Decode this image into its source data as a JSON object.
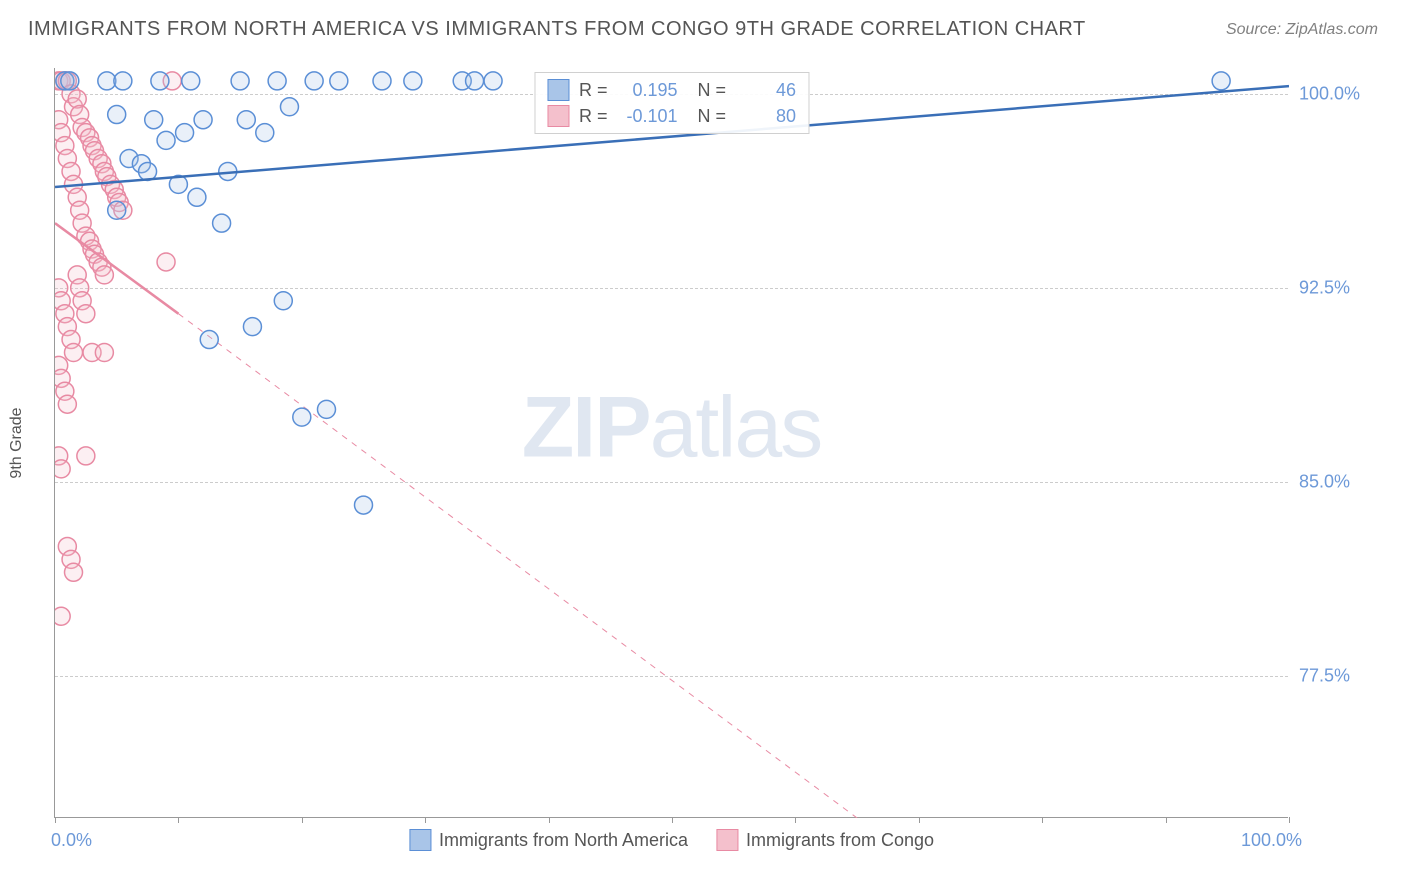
{
  "header": {
    "title": "IMMIGRANTS FROM NORTH AMERICA VS IMMIGRANTS FROM CONGO 9TH GRADE CORRELATION CHART",
    "source": "Source: ZipAtlas.com"
  },
  "chart": {
    "type": "scatter",
    "y_axis_title": "9th Grade",
    "xlim": [
      0,
      100
    ],
    "ylim": [
      72,
      101
    ],
    "x_ticks": [
      0,
      10,
      20,
      30,
      40,
      50,
      60,
      70,
      80,
      90,
      100
    ],
    "x_tick_labels": {
      "left": "0.0%",
      "right": "100.0%"
    },
    "y_gridlines": [
      77.5,
      85.0,
      92.5,
      100.0
    ],
    "y_tick_labels": [
      "77.5%",
      "85.0%",
      "92.5%",
      "100.0%"
    ],
    "grid_color": "#cccccc",
    "axis_color": "#999999",
    "background_color": "#ffffff",
    "label_color": "#6d99d8",
    "marker_radius": 9,
    "marker_stroke_width": 1.5,
    "marker_fill_opacity": 0.25,
    "series": [
      {
        "name": "Immigrants from North America",
        "color_fill": "#a9c5e8",
        "color_stroke": "#5b8fd6",
        "R": "0.195",
        "N": "46",
        "trend": {
          "x1": 0,
          "y1": 96.4,
          "x2": 100,
          "y2": 100.3,
          "width": 2.5,
          "dash": "none"
        },
        "points": [
          [
            0.8,
            100.5
          ],
          [
            1.2,
            100.5
          ],
          [
            4.2,
            100.5
          ],
          [
            5.0,
            95.5
          ],
          [
            5.0,
            99.2
          ],
          [
            5.5,
            100.5
          ],
          [
            6.0,
            97.5
          ],
          [
            7.0,
            97.3
          ],
          [
            7.5,
            97.0
          ],
          [
            8.0,
            99.0
          ],
          [
            8.5,
            100.5
          ],
          [
            9.0,
            98.2
          ],
          [
            10.0,
            96.5
          ],
          [
            10.5,
            98.5
          ],
          [
            11.0,
            100.5
          ],
          [
            11.5,
            96.0
          ],
          [
            12.0,
            99.0
          ],
          [
            12.5,
            90.5
          ],
          [
            13.5,
            95.0
          ],
          [
            14.0,
            97.0
          ],
          [
            15.0,
            100.5
          ],
          [
            15.5,
            99.0
          ],
          [
            16.0,
            91.0
          ],
          [
            17.0,
            98.5
          ],
          [
            18.0,
            100.5
          ],
          [
            18.5,
            92.0
          ],
          [
            19.0,
            99.5
          ],
          [
            20.0,
            87.5
          ],
          [
            21.0,
            100.5
          ],
          [
            22.0,
            87.8
          ],
          [
            23.0,
            100.5
          ],
          [
            25.0,
            84.1
          ],
          [
            26.5,
            100.5
          ],
          [
            29.0,
            100.5
          ],
          [
            33.0,
            100.5
          ],
          [
            34.0,
            100.5
          ],
          [
            35.5,
            100.5
          ],
          [
            94.5,
            100.5
          ]
        ]
      },
      {
        "name": "Immigrants from Congo",
        "color_fill": "#f4c0cc",
        "color_stroke": "#e88aa3",
        "R": "-0.101",
        "N": "80",
        "trend_solid": {
          "x1": 0,
          "y1": 95.0,
          "x2": 10,
          "y2": 91.5,
          "width": 2.5
        },
        "trend_dashed": {
          "x1": 10,
          "y1": 91.5,
          "x2": 65,
          "y2": 72.0,
          "width": 1,
          "dash": "6,6"
        },
        "points": [
          [
            0.3,
            100.5
          ],
          [
            0.5,
            100.5
          ],
          [
            0.8,
            100.5
          ],
          [
            1.0,
            100.5
          ],
          [
            1.3,
            100.0
          ],
          [
            1.5,
            99.5
          ],
          [
            1.8,
            99.8
          ],
          [
            2.0,
            99.2
          ],
          [
            2.2,
            98.7
          ],
          [
            2.5,
            98.5
          ],
          [
            2.8,
            98.3
          ],
          [
            3.0,
            98.0
          ],
          [
            3.2,
            97.8
          ],
          [
            3.5,
            97.5
          ],
          [
            3.8,
            97.3
          ],
          [
            4.0,
            97.0
          ],
          [
            4.2,
            96.8
          ],
          [
            4.5,
            96.5
          ],
          [
            4.8,
            96.3
          ],
          [
            5.0,
            96.0
          ],
          [
            5.2,
            95.8
          ],
          [
            5.5,
            95.5
          ],
          [
            0.3,
            99.0
          ],
          [
            0.5,
            98.5
          ],
          [
            0.8,
            98.0
          ],
          [
            1.0,
            97.5
          ],
          [
            1.3,
            97.0
          ],
          [
            1.5,
            96.5
          ],
          [
            1.8,
            96.0
          ],
          [
            2.0,
            95.5
          ],
          [
            2.2,
            95.0
          ],
          [
            2.5,
            94.5
          ],
          [
            2.8,
            94.3
          ],
          [
            3.0,
            94.0
          ],
          [
            3.2,
            93.8
          ],
          [
            3.5,
            93.5
          ],
          [
            3.8,
            93.3
          ],
          [
            4.0,
            93.0
          ],
          [
            0.3,
            92.5
          ],
          [
            0.5,
            92.0
          ],
          [
            0.8,
            91.5
          ],
          [
            1.0,
            91.0
          ],
          [
            1.3,
            90.5
          ],
          [
            1.5,
            90.0
          ],
          [
            1.8,
            93.0
          ],
          [
            2.0,
            92.5
          ],
          [
            2.2,
            92.0
          ],
          [
            2.5,
            91.5
          ],
          [
            0.3,
            89.5
          ],
          [
            0.5,
            89.0
          ],
          [
            0.8,
            88.5
          ],
          [
            1.0,
            88.0
          ],
          [
            0.3,
            86.0
          ],
          [
            0.5,
            85.5
          ],
          [
            1.0,
            82.5
          ],
          [
            1.3,
            82.0
          ],
          [
            1.5,
            81.5
          ],
          [
            0.5,
            79.8
          ],
          [
            2.5,
            86.0
          ],
          [
            3.0,
            90.0
          ],
          [
            4.0,
            90.0
          ],
          [
            9.0,
            93.5
          ],
          [
            9.5,
            100.5
          ]
        ]
      }
    ],
    "legend_bottom": [
      {
        "label": "Immigrants from North America",
        "fill": "#a9c5e8",
        "stroke": "#5b8fd6"
      },
      {
        "label": "Immigrants from Congo",
        "fill": "#f4c0cc",
        "stroke": "#e88aa3"
      }
    ],
    "watermark": {
      "part1": "ZIP",
      "part2": "atlas"
    }
  }
}
